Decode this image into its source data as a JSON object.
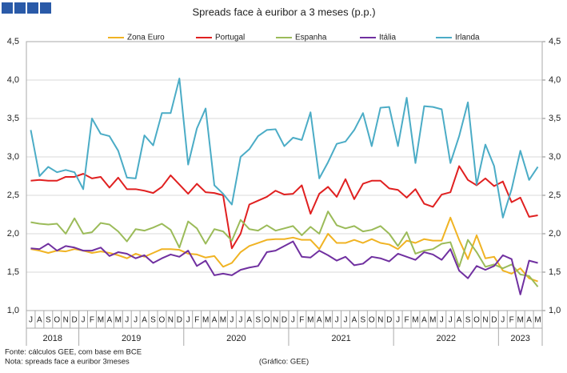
{
  "chart_data": {
    "type": "line",
    "title": "Spreads face à euribor a 3 meses (p.p.)",
    "categories": [
      "J",
      "A",
      "S",
      "O",
      "N",
      "D",
      "J",
      "F",
      "M",
      "A",
      "M",
      "J",
      "J",
      "A",
      "S",
      "O",
      "N",
      "D",
      "J",
      "F",
      "M",
      "A",
      "M",
      "J",
      "J",
      "A",
      "S",
      "O",
      "N",
      "D",
      "J",
      "F",
      "M",
      "A",
      "M",
      "J",
      "J",
      "A",
      "S",
      "O",
      "N",
      "D",
      "J",
      "F",
      "M",
      "A",
      "M",
      "J",
      "J",
      "A",
      "S",
      "O",
      "N",
      "D",
      "J",
      "F",
      "M",
      "A",
      "M"
    ],
    "x_groups": [
      {
        "label": "2018",
        "count": 6
      },
      {
        "label": "2019",
        "count": 12
      },
      {
        "label": "2020",
        "count": 12
      },
      {
        "label": "2021",
        "count": 12
      },
      {
        "label": "2022",
        "count": 12
      },
      {
        "label": "2023",
        "count": 5
      }
    ],
    "series": [
      {
        "name": "Zona Euro",
        "color": "#f0b323",
        "values": [
          1.8,
          1.78,
          1.75,
          1.78,
          1.77,
          1.8,
          1.78,
          1.75,
          1.77,
          1.75,
          1.72,
          1.68,
          1.74,
          1.7,
          1.75,
          1.8,
          1.8,
          1.79,
          1.74,
          1.73,
          1.69,
          1.71,
          1.57,
          1.62,
          1.76,
          1.84,
          1.88,
          1.92,
          1.93,
          1.93,
          1.95,
          1.92,
          1.92,
          1.8,
          2.0,
          1.88,
          1.88,
          1.92,
          1.88,
          1.93,
          1.88,
          1.86,
          1.8,
          1.91,
          1.88,
          1.93,
          1.91,
          1.91,
          2.21,
          1.92,
          1.67,
          1.98,
          1.68,
          1.7,
          1.52,
          1.48,
          1.55,
          1.42,
          1.38
        ]
      },
      {
        "name": "Portugal",
        "color": "#e02020",
        "values": [
          2.69,
          2.7,
          2.69,
          2.69,
          2.74,
          2.74,
          2.78,
          2.72,
          2.74,
          2.6,
          2.73,
          2.58,
          2.58,
          2.56,
          2.53,
          2.61,
          2.76,
          2.64,
          2.52,
          2.65,
          2.54,
          2.53,
          2.5,
          1.81,
          2.0,
          2.38,
          2.43,
          2.48,
          2.56,
          2.51,
          2.52,
          2.63,
          2.26,
          2.52,
          2.61,
          2.48,
          2.71,
          2.45,
          2.65,
          2.69,
          2.69,
          2.59,
          2.57,
          2.47,
          2.58,
          2.39,
          2.35,
          2.51,
          2.54,
          2.88,
          2.7,
          2.63,
          2.72,
          2.62,
          2.68,
          2.41,
          2.47,
          2.22,
          2.24
        ]
      },
      {
        "name": "Espanha",
        "color": "#9bbb59",
        "values": [
          2.15,
          2.13,
          2.12,
          2.13,
          2.0,
          2.2,
          2.0,
          2.02,
          2.14,
          2.12,
          2.03,
          1.9,
          2.06,
          2.04,
          2.08,
          2.13,
          2.05,
          1.82,
          2.16,
          2.07,
          1.87,
          2.06,
          2.03,
          1.91,
          2.18,
          2.06,
          2.04,
          2.11,
          2.04,
          2.07,
          2.1,
          1.98,
          2.09,
          2.0,
          2.29,
          2.11,
          2.07,
          2.1,
          2.03,
          2.05,
          2.1,
          2.0,
          1.84,
          2.02,
          1.74,
          1.78,
          1.8,
          1.87,
          1.89,
          1.57,
          1.92,
          1.76,
          1.57,
          1.6,
          1.55,
          1.6,
          1.47,
          1.45,
          1.31
        ]
      },
      {
        "name": "Itália",
        "color": "#7030a0",
        "values": [
          1.81,
          1.8,
          1.87,
          1.78,
          1.84,
          1.82,
          1.78,
          1.78,
          1.82,
          1.71,
          1.76,
          1.74,
          1.68,
          1.72,
          1.62,
          1.68,
          1.73,
          1.7,
          1.78,
          1.58,
          1.65,
          1.46,
          1.48,
          1.46,
          1.53,
          1.56,
          1.58,
          1.76,
          1.78,
          1.84,
          1.9,
          1.7,
          1.69,
          1.78,
          1.72,
          1.65,
          1.7,
          1.59,
          1.61,
          1.7,
          1.68,
          1.64,
          1.74,
          1.7,
          1.66,
          1.76,
          1.73,
          1.66,
          1.8,
          1.52,
          1.42,
          1.58,
          1.53,
          1.58,
          1.72,
          1.67,
          1.21,
          1.65,
          1.62
        ]
      },
      {
        "name": "Irlanda",
        "color": "#4bacc6",
        "values": [
          3.35,
          2.75,
          2.87,
          2.8,
          2.83,
          2.8,
          2.58,
          3.5,
          3.3,
          3.27,
          3.08,
          2.73,
          2.72,
          3.28,
          3.15,
          3.57,
          3.57,
          4.02,
          2.9,
          3.37,
          3.63,
          2.63,
          2.52,
          2.38,
          3.0,
          3.1,
          3.27,
          3.35,
          3.36,
          3.14,
          3.25,
          3.22,
          3.58,
          2.72,
          2.93,
          3.17,
          3.2,
          3.35,
          3.57,
          3.14,
          3.64,
          3.65,
          3.14,
          3.77,
          2.92,
          3.66,
          3.65,
          3.62,
          2.92,
          3.27,
          3.71,
          2.64,
          3.16,
          2.88,
          2.21,
          2.58,
          3.08,
          2.7,
          2.87
        ]
      }
    ],
    "ylim": [
      1.0,
      4.5
    ],
    "yticks": [
      {
        "value": 1.0,
        "label": "1,0"
      },
      {
        "value": 1.5,
        "label": "1,5"
      },
      {
        "value": 2.0,
        "label": "2,0"
      },
      {
        "value": 2.5,
        "label": "2,5"
      },
      {
        "value": 3.0,
        "label": "3,0"
      },
      {
        "value": 3.5,
        "label": "3,5"
      },
      {
        "value": 4.0,
        "label": "4,0"
      },
      {
        "value": 4.5,
        "label": "4,5"
      }
    ],
    "y2lim": [
      1.0,
      4.5
    ],
    "y2ticks": [
      {
        "value": 1.0,
        "label": "1,0"
      },
      {
        "value": 1.5,
        "label": "1,5"
      },
      {
        "value": 2.0,
        "label": "2,0"
      },
      {
        "value": 2.5,
        "label": "2,5"
      },
      {
        "value": 3.0,
        "label": "3,0"
      },
      {
        "value": 3.5,
        "label": "3,5"
      },
      {
        "value": 4.0,
        "label": "4,0"
      },
      {
        "value": 4.5,
        "label": "4,5"
      }
    ],
    "grid": true,
    "legend": "top",
    "notes": [
      "Fonte: cálculos GEE, com base em BCE",
      "Nota: spreads face a euribor 3meses"
    ],
    "credit": "(Gráfico: GEE)"
  }
}
